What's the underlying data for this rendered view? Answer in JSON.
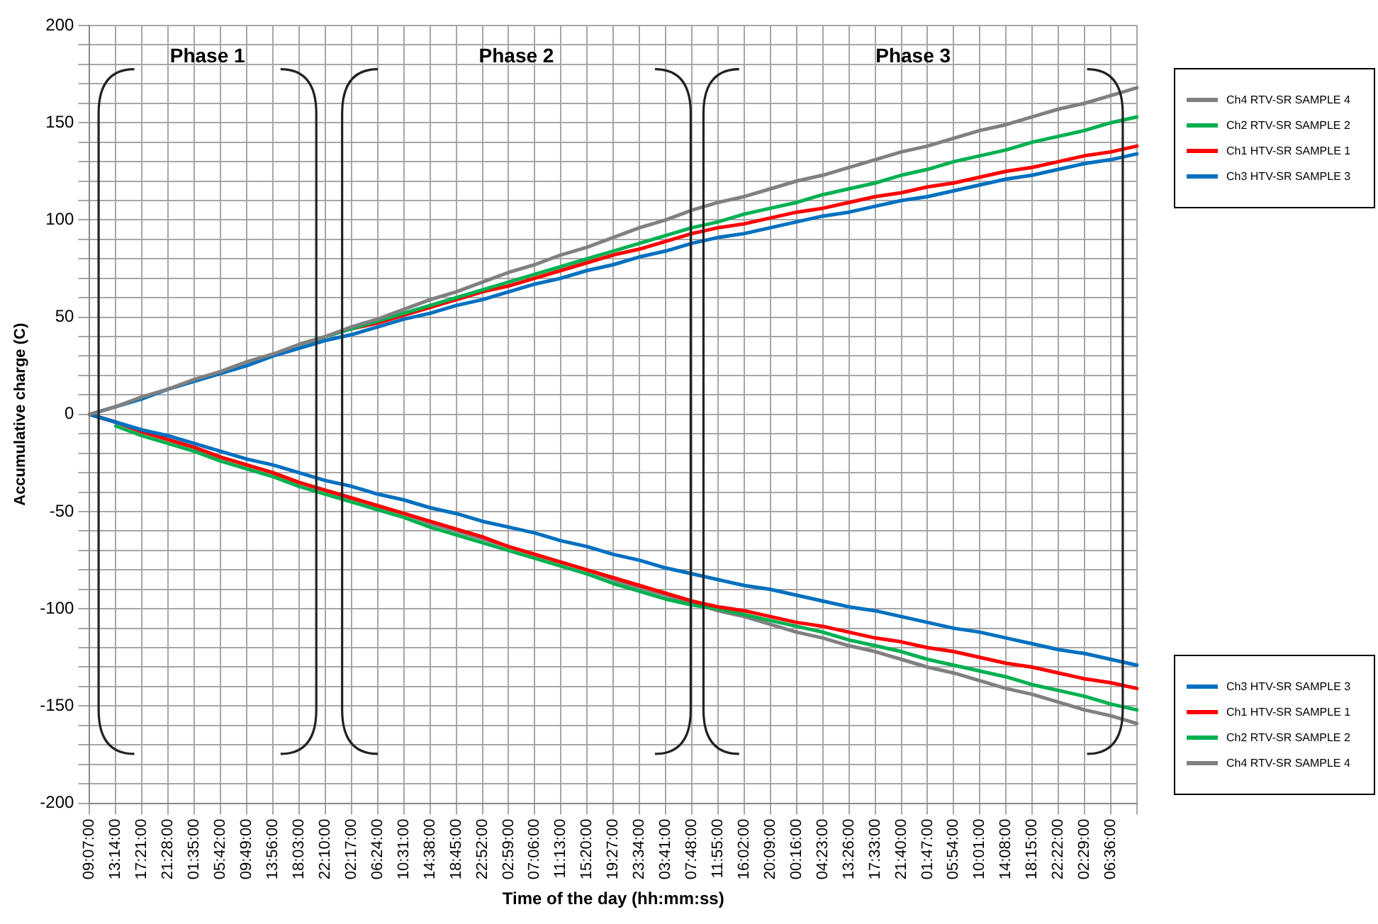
{
  "chart_data": {
    "type": "line",
    "xlabel": "Time of the day (hh:mm:ss)",
    "ylabel": "Accumulative charge (C)",
    "categories": [
      "09:07:00",
      "13:14:00",
      "17:21:00",
      "21:28:00",
      "01:35:00",
      "05:42:00",
      "09:49:00",
      "13:56:00",
      "18:03:00",
      "22:10:00",
      "02:17:00",
      "06:24:00",
      "10:31:00",
      "14:38:00",
      "18:45:00",
      "22:52:00",
      "02:59:00",
      "07:06:00",
      "11:13:00",
      "15:20:00",
      "19:27:00",
      "23:34:00",
      "03:41:00",
      "07:48:00",
      "11:55:00",
      "16:02:00",
      "20:09:00",
      "00:16:00",
      "04:23:00",
      "13:26:00",
      "17:33:00",
      "21:40:00",
      "01:47:00",
      "05:54:00",
      "10:01:00",
      "14:08:00",
      "18:15:00",
      "22:22:00",
      "02:29:00",
      "06:36:00",
      null
    ],
    "series": [
      {
        "name": "Ch4 RTV-SR SAMPLE 4",
        "color": "#808080",
        "values": [
          0,
          4,
          9,
          13,
          18,
          22,
          27,
          31,
          36,
          40,
          45,
          49,
          54,
          59,
          63,
          68,
          73,
          77,
          82,
          86,
          91,
          96,
          100,
          105,
          109,
          112,
          116,
          120,
          123,
          127,
          131,
          135,
          138,
          142,
          146,
          149,
          153,
          157,
          160,
          164,
          168
        ]
      },
      {
        "name": "Ch2 RTV-SR SAMPLE 2",
        "color": "#00b050",
        "values": [
          null,
          null,
          null,
          null,
          null,
          null,
          null,
          null,
          36,
          40,
          44,
          48,
          52,
          56,
          60,
          64,
          68,
          72,
          76,
          80,
          84,
          88,
          92,
          96,
          99,
          103,
          106,
          109,
          113,
          116,
          119,
          123,
          126,
          130,
          133,
          136,
          140,
          143,
          146,
          150,
          153
        ]
      },
      {
        "name": "Ch1 HTV-SR SAMPLE 1",
        "color": "#ff0000",
        "values": [
          null,
          null,
          null,
          null,
          null,
          null,
          null,
          null,
          null,
          null,
          44,
          47,
          51,
          55,
          59,
          63,
          66,
          70,
          74,
          78,
          82,
          85,
          89,
          93,
          96,
          98,
          101,
          104,
          106,
          109,
          112,
          114,
          117,
          119,
          122,
          125,
          127,
          130,
          133,
          135,
          138
        ]
      },
      {
        "name": "Ch3 HTV-SR SAMPLE 3",
        "color": "#0070c0",
        "values": [
          0,
          4,
          8,
          13,
          17,
          21,
          25,
          30,
          34,
          38,
          41,
          45,
          49,
          52,
          56,
          59,
          63,
          67,
          70,
          74,
          77,
          81,
          84,
          88,
          91,
          93,
          96,
          99,
          102,
          104,
          107,
          110,
          112,
          115,
          118,
          121,
          123,
          126,
          129,
          131,
          134
        ]
      },
      {
        "name": "Ch3 HTV-SR SAMPLE 3",
        "color": "#0070c0",
        "values": [
          0,
          -4,
          -8,
          -11,
          -15,
          -19,
          -23,
          -26,
          -30,
          -34,
          -37,
          -41,
          -44,
          -48,
          -51,
          -55,
          -58,
          -61,
          -65,
          -68,
          -72,
          -75,
          -79,
          -82,
          -85,
          -88,
          -90,
          -93,
          -96,
          -99,
          -101,
          -104,
          -107,
          -110,
          -112,
          -115,
          -118,
          -121,
          -123,
          -126,
          -129
        ]
      },
      {
        "name": "Ch1 HTV-SR SAMPLE 1",
        "color": "#ff0000",
        "values": [
          0,
          -4,
          -9,
          -13,
          -17,
          -22,
          -26,
          -30,
          -35,
          -39,
          -43,
          -47,
          -51,
          -55,
          -59,
          -63,
          -68,
          -72,
          -76,
          -80,
          -84,
          -88,
          -92,
          -96,
          -99,
          -101,
          -104,
          -107,
          -109,
          -112,
          -115,
          -117,
          -120,
          -122,
          -125,
          -128,
          -130,
          -133,
          -136,
          -138,
          -141
        ]
      },
      {
        "name": "Ch2 RTV-SR SAMPLE 2",
        "color": "#00b050",
        "values": [
          null,
          -6,
          -11,
          -15,
          -19,
          -24,
          -28,
          -32,
          -37,
          -41,
          -45,
          -49,
          -53,
          -58,
          -62,
          -66,
          -70,
          -74,
          -78,
          -82,
          -87,
          -91,
          -95,
          -98,
          -100,
          -103,
          -106,
          -109,
          -112,
          -116,
          -119,
          -122,
          -126,
          -129,
          -132,
          -135,
          -139,
          -142,
          -145,
          -149,
          -152
        ]
      },
      {
        "name": "Ch4 RTV-SR SAMPLE 4",
        "color": "#808080",
        "values": [
          0,
          -4,
          -9,
          -13,
          -17,
          -22,
          -26,
          -30,
          -35,
          -39,
          -43,
          -47,
          -51,
          -56,
          -60,
          -64,
          -68,
          -72,
          -76,
          -80,
          -85,
          -89,
          -93,
          -97,
          -101,
          -104,
          -108,
          -112,
          -115,
          -119,
          -122,
          -126,
          -130,
          -133,
          -137,
          -141,
          -144,
          -148,
          -152,
          -155,
          -159
        ]
      }
    ],
    "ylim": [
      -200,
      200
    ],
    "yticks": [
      -200,
      {
        "value": -190,
        "label": null
      },
      {
        "value": -180,
        "label": null
      },
      {
        "value": -170,
        "label": null
      },
      {
        "value": -160,
        "label": null
      },
      -150,
      {
        "value": -140,
        "label": null
      },
      {
        "value": -130,
        "label": null
      },
      {
        "value": -120,
        "label": null
      },
      {
        "value": -110,
        "label": null
      },
      -100,
      {
        "value": -90,
        "label": null
      },
      {
        "value": -80,
        "label": null
      },
      {
        "value": -70,
        "label": null
      },
      {
        "value": -60,
        "label": null
      },
      -50,
      {
        "value": -40,
        "label": null
      },
      {
        "value": -30,
        "label": null
      },
      {
        "value": -20,
        "label": null
      },
      {
        "value": -10,
        "label": null
      },
      0,
      {
        "value": 10,
        "label": null
      },
      {
        "value": 20,
        "label": null
      },
      {
        "value": 30,
        "label": null
      },
      {
        "value": 40,
        "label": null
      },
      50,
      {
        "value": 60,
        "label": null
      },
      {
        "value": 70,
        "label": null
      },
      {
        "value": 80,
        "label": null
      },
      {
        "value": 90,
        "label": null
      },
      100,
      {
        "value": 110,
        "label": null
      },
      {
        "value": 120,
        "label": null
      },
      {
        "value": 130,
        "label": null
      },
      {
        "value": 140,
        "label": null
      },
      150,
      {
        "value": 160,
        "label": null
      },
      {
        "value": 170,
        "label": null
      },
      {
        "value": 180,
        "label": null
      },
      {
        "value": 190,
        "label": null
      },
      200
    ],
    "annotations": [
      "Phase 1",
      "Phase 2",
      "Phase 3"
    ],
    "grid": true,
    "legend": "right",
    "marker": "none",
    "line_style": "solid"
  }
}
